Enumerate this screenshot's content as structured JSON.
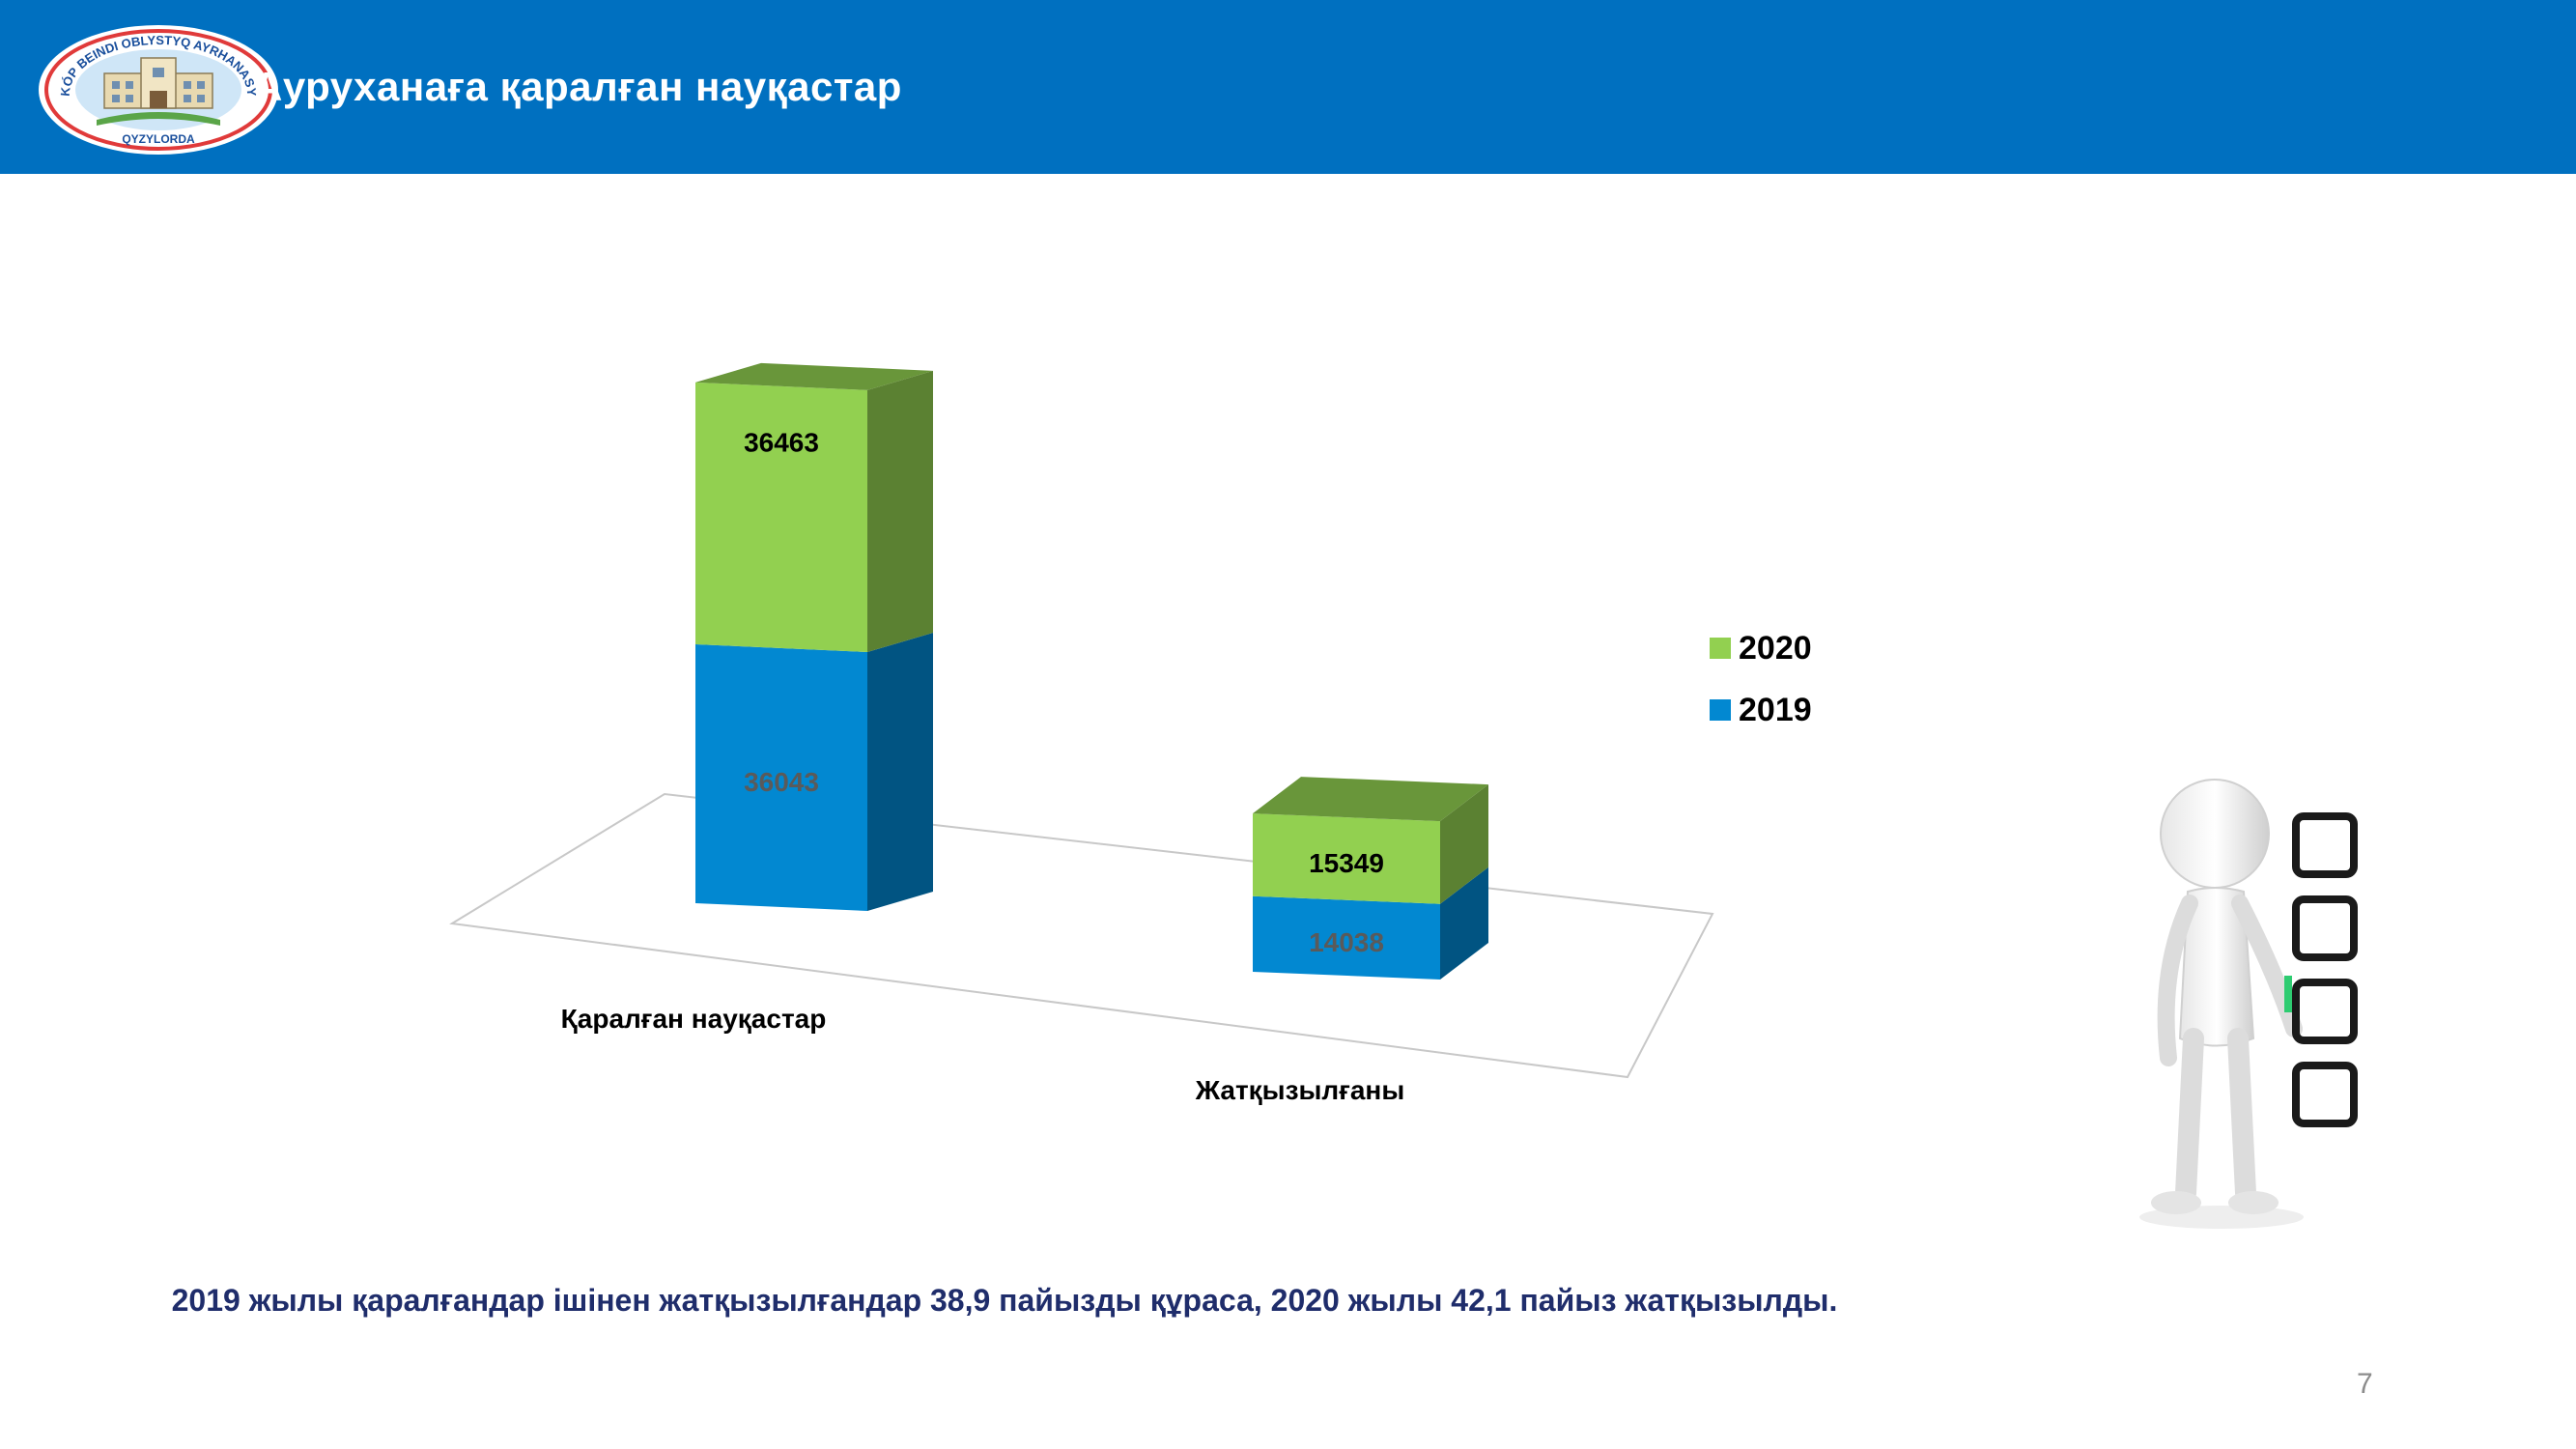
{
  "header": {
    "title": "Ауруханаға  қаралған науқастар",
    "logo_text_top": "KÓP BEINDI OBLYSTYQ AYRHANASY",
    "logo_text_bottom": "QYZYLORDA"
  },
  "chart_data": {
    "type": "bar",
    "stacked": true,
    "three_d": true,
    "categories": [
      "Қаралған науқастар",
      "Жатқызылғаны"
    ],
    "series": [
      {
        "name": "2019",
        "values": [
          36043,
          14038
        ],
        "color": "#0288d1"
      },
      {
        "name": "2020",
        "values": [
          36463,
          15349
        ],
        "color": "#92d050"
      }
    ],
    "legend": {
      "position": "right",
      "order": [
        "2020",
        "2019"
      ]
    },
    "grid": false
  },
  "summary": "2019 жылы қаралғандар ішінен жатқызылғандар 38,9 пайызды құраса, 2020 жылы 42,1 пайыз жатқызылды.",
  "page_number": "7",
  "figure_icon": "person-checklist-icon",
  "colors": {
    "header_bg": "#0070c0",
    "summary_text": "#1f2d6b"
  }
}
